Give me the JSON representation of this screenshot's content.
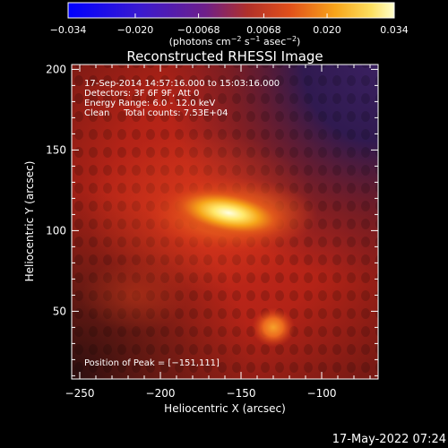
{
  "chart_data": {
    "type": "heatmap",
    "title": "Reconstructed RHESSI Image",
    "xlabel": "Heliocentric X (arcsec)",
    "ylabel": "Heliocentric Y (arcsec)",
    "xlim": [
      -255,
      -65
    ],
    "ylim": [
      8,
      203
    ],
    "x_ticks": [
      -250,
      -200,
      -150,
      -100
    ],
    "x_tick_labels": [
      "−250",
      "−200",
      "−150",
      "−100"
    ],
    "y_ticks": [
      50,
      100,
      150,
      200
    ],
    "y_tick_labels": [
      "50",
      "100",
      "150",
      "200"
    ],
    "colorbar": {
      "min": -0.034,
      "max": 0.034,
      "ticks": [
        -0.034,
        -0.02,
        -0.0068,
        0.0068,
        0.02,
        0.034
      ],
      "tick_labels": [
        "−0.034",
        "−0.020",
        "−0.0068",
        "0.0068",
        "0.020",
        "0.034"
      ],
      "unit_main": "(photons cm",
      "unit_sup1": "−2",
      "unit_mid": " s",
      "unit_sup2": "−1",
      "unit_mid2": " asec",
      "unit_sup3": "−2",
      "unit_end": ")"
    },
    "sources": [
      {
        "x": -151,
        "y": 111,
        "value": 0.034
      },
      {
        "x": -130,
        "y": 40,
        "value": 0.02
      }
    ],
    "info_lines": [
      "17-Sep-2014 14:57:16.000 to 15:03:16.000",
      "Detectors: 3F 6F 9F, Att 0",
      "Energy Range: 6.0 - 12.0 keV",
      "Clean     Total counts: 7.53E+04"
    ],
    "peak_label": "Position of Peak = [−151,111]",
    "timestamp": "17-May-2022 07:24"
  }
}
